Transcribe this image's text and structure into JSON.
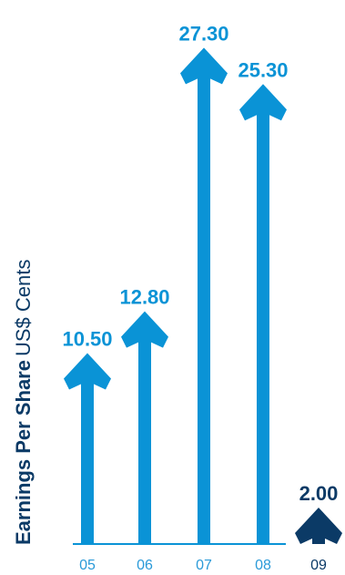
{
  "chart_data": {
    "type": "bar",
    "title": "",
    "ylabel_bold": "Earnings Per Share",
    "ylabel_unit": "US$ Cents",
    "xlabel": "",
    "categories": [
      "05",
      "06",
      "07",
      "08",
      "09"
    ],
    "values": [
      10.5,
      12.8,
      27.3,
      25.3,
      2.0
    ],
    "value_labels": [
      "10.50",
      "12.80",
      "27.30",
      "25.30",
      "2.00"
    ],
    "highlight_index": 4,
    "ylim": [
      0,
      30
    ],
    "grid": false,
    "legend": "none",
    "colors": {
      "bar": "#0a93d6",
      "highlight": "#0b3a66",
      "tick_label": "#2a9ad8",
      "highlight_tick_label": "#0b3a66",
      "baseline": "#0a93d6",
      "axis_label": "#0b3a66"
    }
  }
}
